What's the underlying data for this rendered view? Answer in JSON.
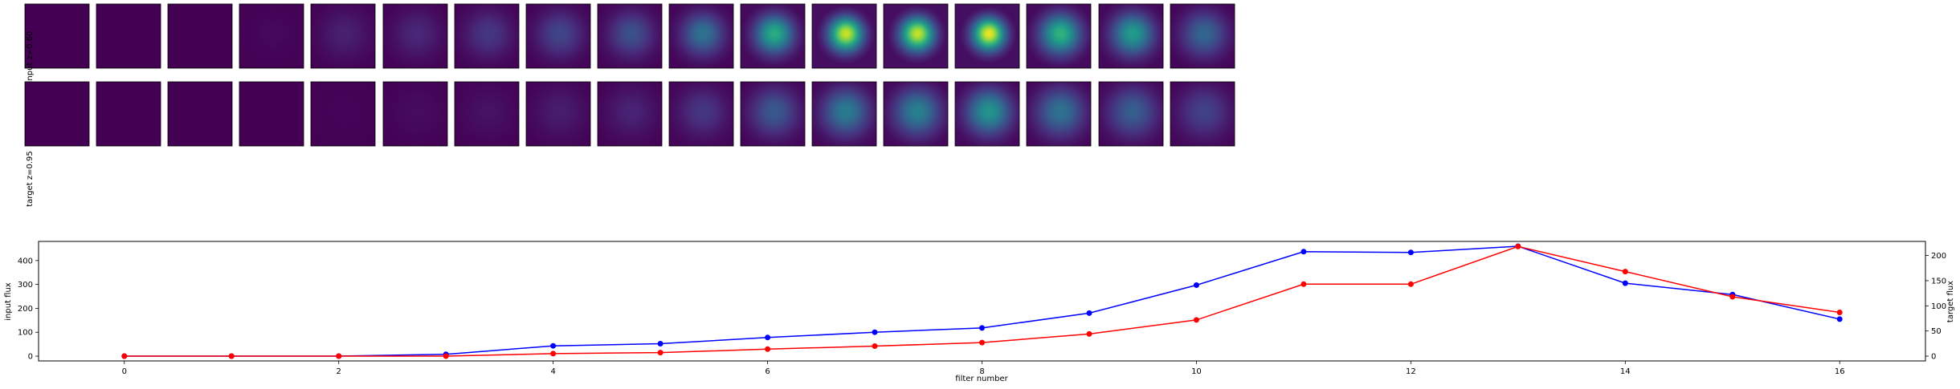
{
  "chart_data": [
    {
      "type": "heatmap",
      "row_label": "input z=0.60",
      "colormap": "viridis",
      "panel_count": 17,
      "panel_peak_intensity": [
        0.0,
        0.0,
        0.0,
        0.02,
        0.09,
        0.11,
        0.16,
        0.21,
        0.25,
        0.38,
        0.62,
        0.93,
        0.92,
        0.98,
        0.65,
        0.55,
        0.33
      ],
      "panel_spread": [
        0.34,
        0.34,
        0.34,
        0.33,
        0.33,
        0.32,
        0.31,
        0.3,
        0.29,
        0.27,
        0.25,
        0.22,
        0.22,
        0.21,
        0.26,
        0.27,
        0.29
      ]
    },
    {
      "type": "heatmap",
      "row_label": "target z=0.95",
      "colormap": "viridis",
      "panel_count": 17,
      "panel_peak_intensity": [
        0.0,
        0.0,
        0.0,
        0.0,
        0.01,
        0.03,
        0.05,
        0.08,
        0.1,
        0.16,
        0.28,
        0.42,
        0.44,
        0.52,
        0.38,
        0.3,
        0.2
      ],
      "panel_spread": [
        0.36,
        0.36,
        0.36,
        0.36,
        0.35,
        0.35,
        0.34,
        0.34,
        0.33,
        0.32,
        0.31,
        0.3,
        0.3,
        0.29,
        0.31,
        0.32,
        0.33
      ]
    },
    {
      "type": "line",
      "xlabel": "filter number",
      "ylabel": "input flux",
      "ylabel_right": "target flux",
      "x": [
        0,
        1,
        2,
        3,
        4,
        5,
        6,
        7,
        8,
        9,
        10,
        11,
        12,
        13,
        14,
        15,
        16
      ],
      "xlim": [
        -0.8,
        16.8
      ],
      "ylim_left": [
        -20,
        480
      ],
      "ylim_right": [
        -9.5,
        228
      ],
      "xticks": [
        "0",
        "2",
        "4",
        "6",
        "8",
        "10",
        "12",
        "14",
        "16"
      ],
      "yticks_left": [
        "0",
        "100",
        "200",
        "300",
        "400"
      ],
      "yticks_right": [
        "0",
        "50",
        "100",
        "150",
        "200"
      ],
      "series": [
        {
          "axis": "left",
          "color": "#0000ff",
          "values": [
            0,
            0,
            0,
            8,
            43,
            52,
            78,
            100,
            118,
            180,
            297,
            437,
            434,
            460,
            305,
            258,
            155
          ]
        },
        {
          "axis": "right",
          "color": "#ff0000",
          "values": [
            0,
            0,
            0,
            0,
            5,
            7,
            14,
            20,
            27,
            44,
            72,
            143,
            143,
            218,
            168,
            118,
            87
          ]
        }
      ]
    }
  ]
}
